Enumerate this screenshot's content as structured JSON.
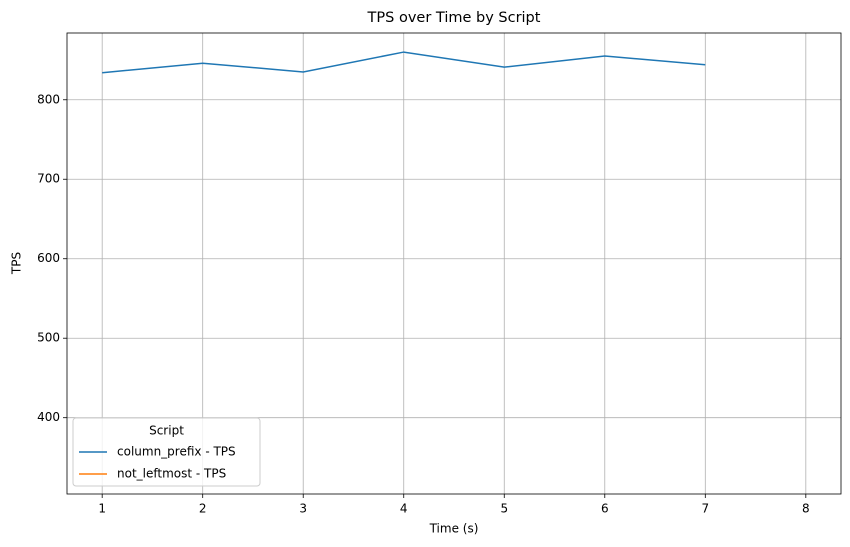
{
  "chart_data": {
    "type": "line",
    "title": "TPS over Time by Script",
    "x_label": "Time (s)",
    "y_label": "TPS",
    "x": [
      1,
      2,
      3,
      4,
      5,
      6,
      7,
      8
    ],
    "series": [
      {
        "name": "column_prefix - TPS",
        "color": "#1f77b4",
        "values": [
          834,
          846,
          835,
          860,
          841,
          855,
          844,
          null
        ]
      },
      {
        "name": "not_leftmost - TPS",
        "color": "#ff7f0e",
        "values": [
          null,
          null,
          null,
          null,
          null,
          null,
          null,
          null
        ]
      }
    ],
    "xlim": [
      0.65,
      8.35
    ],
    "ylim": [
      304,
      884
    ],
    "xticks": [
      1,
      2,
      3,
      4,
      5,
      6,
      7,
      8
    ],
    "yticks": [
      400,
      500,
      600,
      700,
      800
    ],
    "grid": true,
    "legend_title": "Script",
    "legend_loc": "lower left"
  }
}
